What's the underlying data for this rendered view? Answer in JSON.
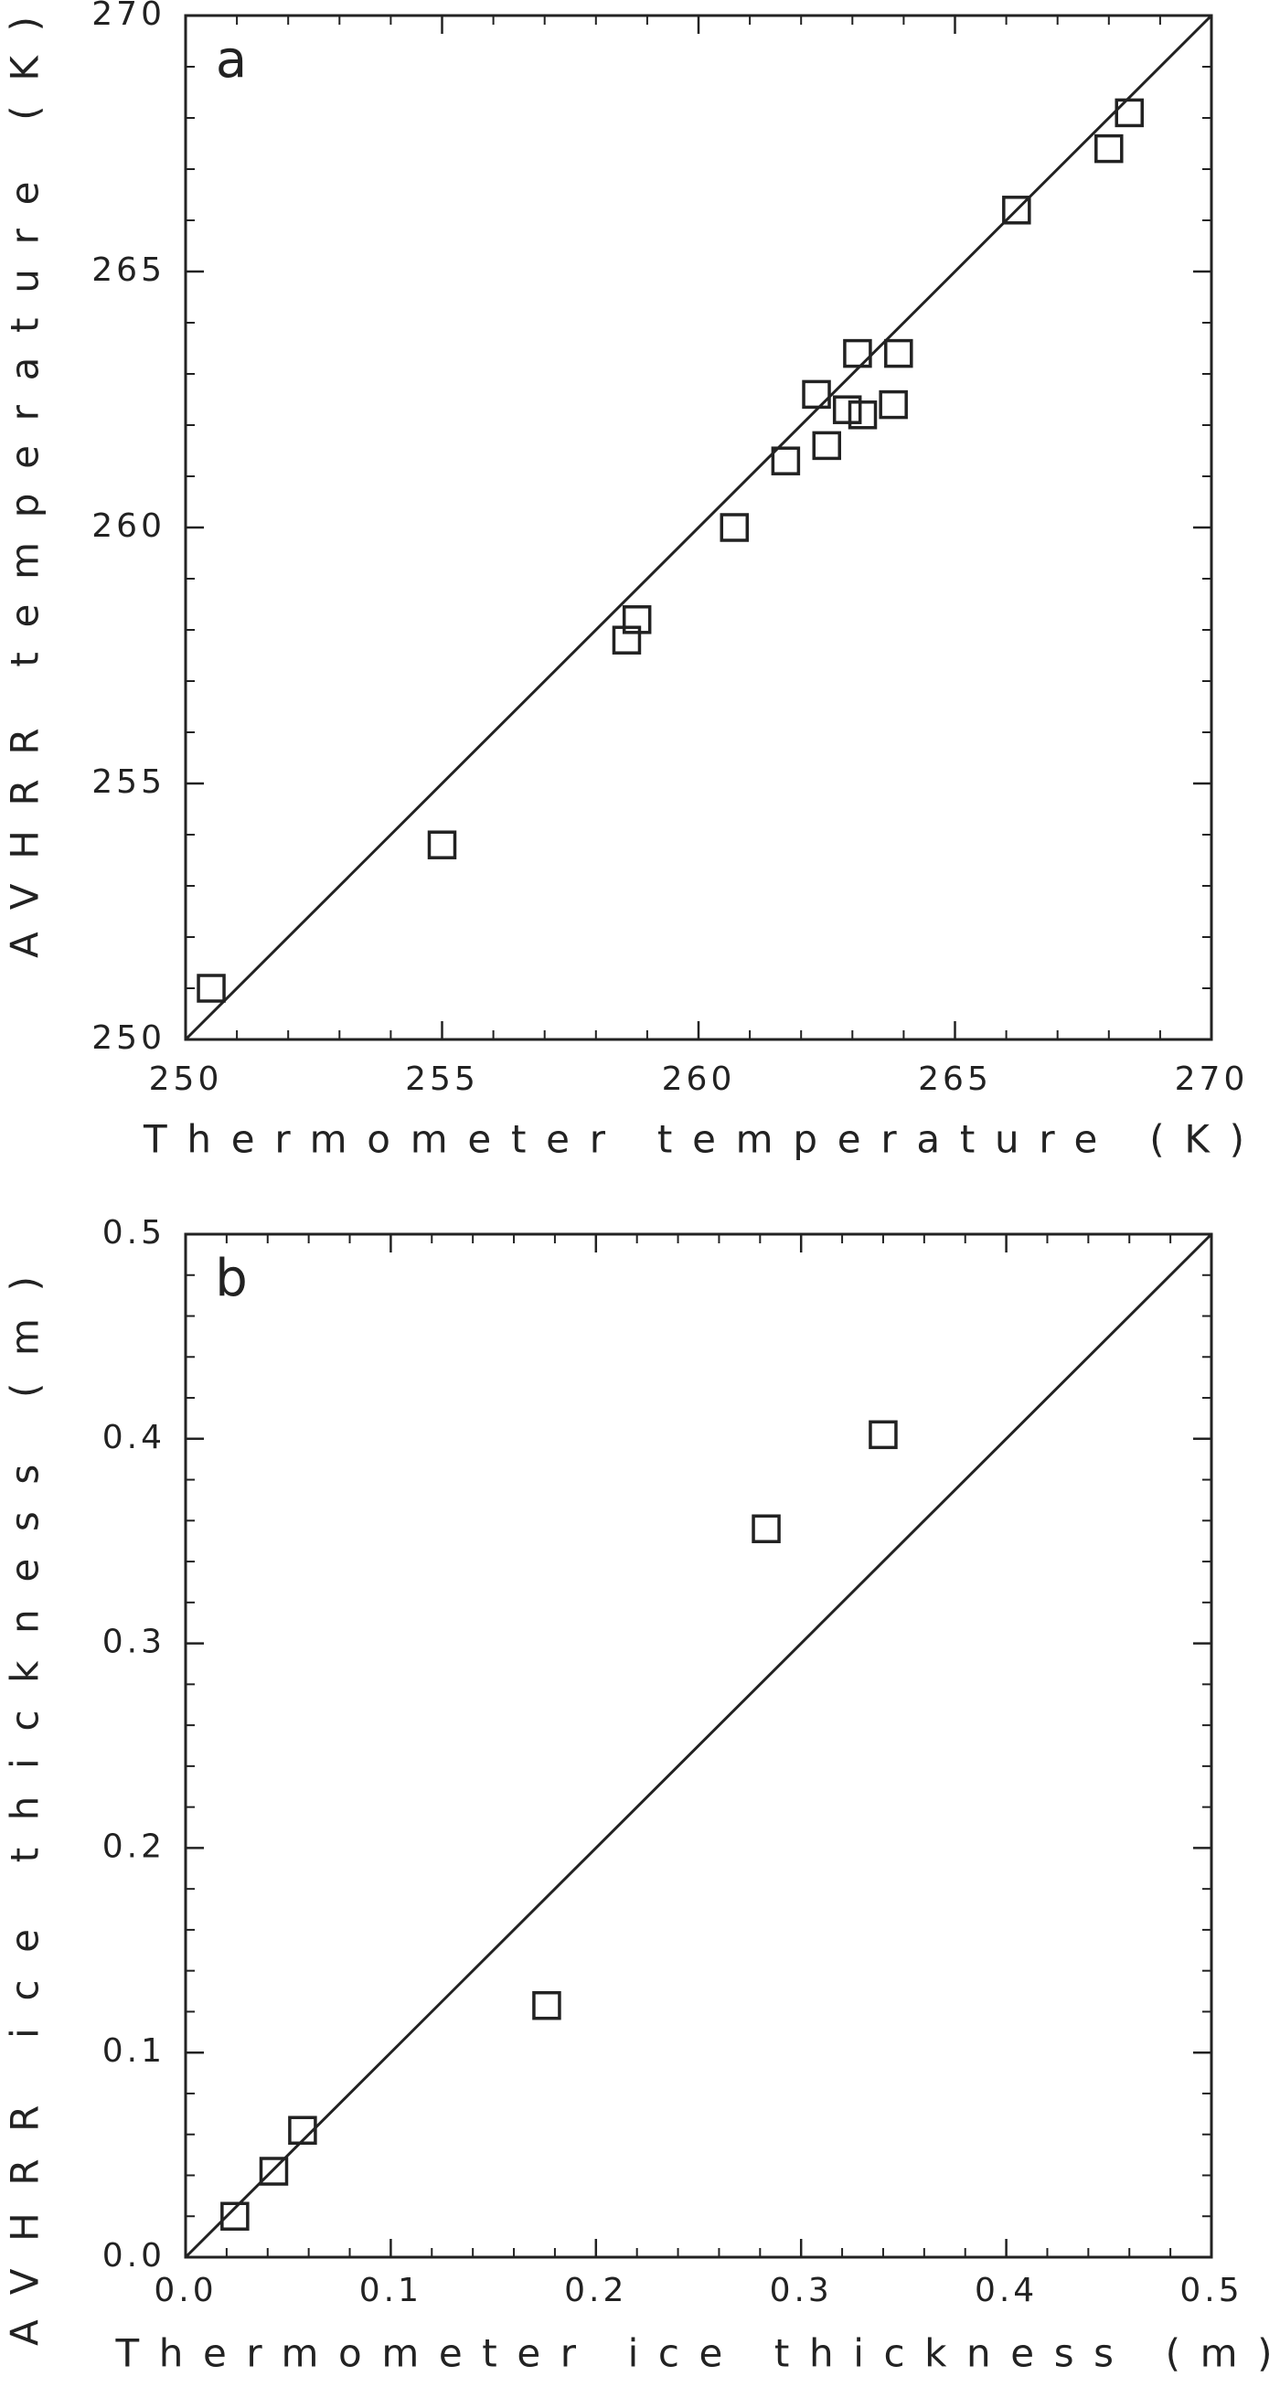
{
  "chart_data": [
    {
      "type": "scatter",
      "panel_label": "a",
      "x_label": "Thermometer temperature (K)",
      "y_label": "AVHRR temperature (K)",
      "x": [
        250.5,
        255.0,
        258.6,
        258.8,
        260.7,
        261.7,
        262.5,
        262.3,
        262.9,
        263.2,
        263.1,
        263.9,
        263.8,
        266.2,
        268.0,
        268.4
      ],
      "values": [
        251.0,
        253.8,
        257.8,
        258.2,
        260.0,
        261.3,
        261.6,
        262.6,
        262.3,
        262.2,
        263.4,
        263.4,
        262.4,
        266.2,
        267.4,
        268.1
      ],
      "color": "#222222",
      "xlim": [
        250,
        270
      ],
      "ylim": [
        250,
        270
      ],
      "xticks": [
        250,
        255,
        260,
        265,
        270
      ],
      "yticks": [
        250,
        255,
        260,
        265,
        270
      ]
    },
    {
      "type": "scatter",
      "panel_label": "b",
      "x_label": "Thermometer ice thickness (m)",
      "y_label": "AVHRR ice thickness (m)",
      "x": [
        0.024,
        0.043,
        0.057,
        0.176,
        0.283,
        0.34
      ],
      "values": [
        0.02,
        0.042,
        0.062,
        0.123,
        0.356,
        0.402
      ],
      "color": "#222222",
      "xlim": [
        0,
        0.5
      ],
      "ylim": [
        0,
        0.5
      ],
      "xticks": [
        {
          "value": 0,
          "label": "0.0"
        },
        0.1,
        0.2,
        0.3,
        0.4,
        0.5
      ],
      "yticks": [
        {
          "value": 0,
          "label": "0.0"
        },
        0.1,
        0.2,
        0.3,
        0.4,
        0.5
      ]
    }
  ]
}
